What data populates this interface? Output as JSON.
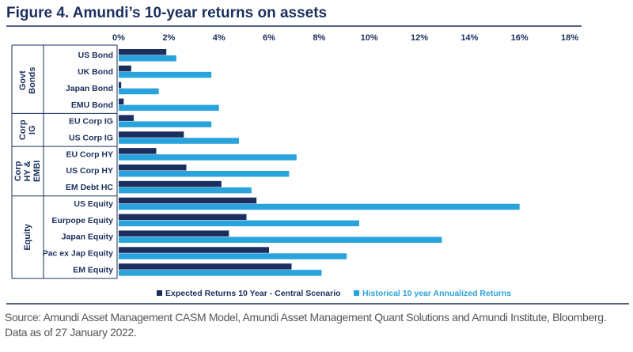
{
  "chart_data": {
    "type": "hbar",
    "title": "Figure 4. Amundi’s 10-year returns on assets",
    "categories": [
      "US Bond",
      "UK Bond",
      "Japan Bond",
      "EMU Bond",
      "EU Corp IG",
      "US Corp IG",
      "EU Corp HY",
      "US Corp HY",
      "EM Debt HC",
      "US Equity",
      "Eurpope Equity",
      "Japan Equity",
      "Pac ex Jap Equity",
      "EM Equity"
    ],
    "category_group": [
      "Govt Bonds",
      "Govt Bonds",
      "Govt Bonds",
      "Govt Bonds",
      "Corp IG",
      "Corp IG",
      "Corp HY & EMBI",
      "Corp HY & EMBI",
      "Corp HY & EMBI",
      "Equity",
      "Equity",
      "Equity",
      "Equity",
      "Equity"
    ],
    "series": [
      {
        "name": "Expected Returns 10 Year - Central Scenario",
        "color": "#1b2f5e",
        "values": [
          1.9,
          0.5,
          0.1,
          0.2,
          0.6,
          2.6,
          1.5,
          2.7,
          4.1,
          5.5,
          5.1,
          4.4,
          6.0,
          6.9
        ]
      },
      {
        "name": "Historical 10 year Annualized Returns",
        "color": "#29a3dc",
        "values": [
          2.3,
          3.7,
          1.6,
          4.0,
          3.7,
          4.8,
          7.1,
          6.8,
          5.3,
          16.0,
          9.6,
          12.9,
          9.1,
          8.1
        ]
      }
    ],
    "xlim": [
      0,
      18
    ],
    "xticks": [
      {
        "value": 0,
        "label": "0%"
      },
      {
        "value": 2,
        "label": "2%"
      },
      {
        "value": 4,
        "label": "4%"
      },
      {
        "value": 6,
        "label": "6%"
      },
      {
        "value": 8,
        "label": "8%"
      },
      {
        "value": 10,
        "label": "10%"
      },
      {
        "value": 12,
        "label": "12%"
      },
      {
        "value": 14,
        "label": "14%"
      },
      {
        "value": 16,
        "label": "16%"
      },
      {
        "value": 18,
        "label": "18%"
      }
    ],
    "source": "Source: Amundi Asset Management CASM Model, Amundi Asset Management Quant Solutions and Amundi Institute, Bloomberg. Data as of 27 January 2022."
  }
}
